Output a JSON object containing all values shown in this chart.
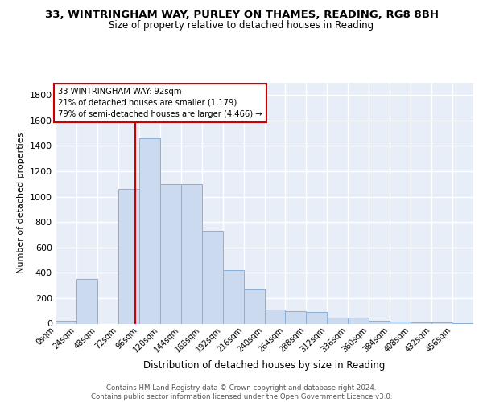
{
  "title_line1": "33, WINTRINGHAM WAY, PURLEY ON THAMES, READING, RG8 8BH",
  "title_line2": "Size of property relative to detached houses in Reading",
  "xlabel": "Distribution of detached houses by size in Reading",
  "ylabel": "Number of detached properties",
  "annotation_text": "33 WINTRINGHAM WAY: 92sqm\n21% of detached houses are smaller (1,179)\n79% of semi-detached houses are larger (4,466) →",
  "property_size": 92,
  "bar_color": "#ccdaf0",
  "bar_edge_color": "#8ab0d8",
  "line_color": "#cc0000",
  "background_color": "#e8eef8",
  "grid_color": "#d0d8e8",
  "footer_text": "Contains HM Land Registry data © Crown copyright and database right 2024.\nContains public sector information licensed under the Open Government Licence v3.0.",
  "bin_edges": [
    0,
    24,
    48,
    72,
    96,
    120,
    144,
    168,
    192,
    216,
    240,
    264,
    288,
    312,
    336,
    360,
    384,
    408,
    432,
    456,
    480
  ],
  "bar_heights": [
    20,
    350,
    0,
    1060,
    1460,
    1100,
    1100,
    730,
    420,
    270,
    110,
    100,
    95,
    50,
    45,
    20,
    15,
    10,
    8,
    5
  ],
  "ylim": [
    0,
    1900
  ],
  "yticks": [
    0,
    200,
    400,
    600,
    800,
    1000,
    1200,
    1400,
    1600,
    1800
  ]
}
